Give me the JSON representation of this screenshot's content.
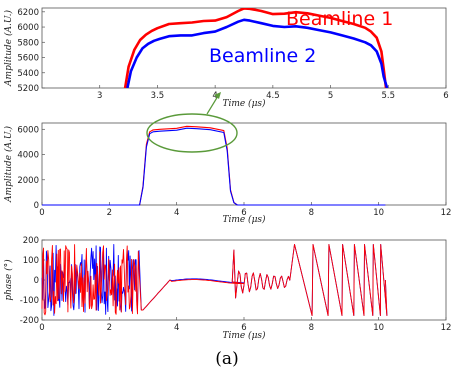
{
  "figure": {
    "caption": "(a)"
  },
  "chart_data": [
    {
      "type": "line",
      "xlabel": "Time (μs)",
      "ylabel": "Amplitude (A.U.)",
      "xlim": [
        2.5,
        6
      ],
      "ylim": [
        5200,
        6250
      ],
      "xticks": [
        "3",
        "3.5",
        "4",
        "4.5",
        "5",
        "5.5",
        "6"
      ],
      "yticks": [
        "5200",
        "5400",
        "5600",
        "5800",
        "6000",
        "6200"
      ],
      "annotations": [
        "Beamline 1",
        "Beamline 2"
      ],
      "series": [
        {
          "name": "Beamline 1",
          "color": "#ff0000",
          "x": [
            3.22,
            3.25,
            3.3,
            3.35,
            3.4,
            3.45,
            3.5,
            3.6,
            3.7,
            3.8,
            3.9,
            4.0,
            4.1,
            4.2,
            4.25,
            4.3,
            4.4,
            4.5,
            4.6,
            4.7,
            4.8,
            4.9,
            5.0,
            5.1,
            5.2,
            5.3,
            5.35,
            5.4,
            5.44,
            5.46,
            5.48
          ],
          "y": [
            5200,
            5480,
            5700,
            5830,
            5900,
            5950,
            5985,
            6040,
            6050,
            6060,
            6080,
            6085,
            6130,
            6210,
            6245,
            6240,
            6210,
            6170,
            6175,
            6195,
            6180,
            6150,
            6120,
            6080,
            6040,
            5990,
            5940,
            5860,
            5680,
            5450,
            5200
          ]
        },
        {
          "name": "Beamline 2",
          "color": "#0000ff",
          "x": [
            3.24,
            3.27,
            3.32,
            3.37,
            3.42,
            3.47,
            3.52,
            3.6,
            3.7,
            3.8,
            3.9,
            4.0,
            4.1,
            4.2,
            4.25,
            4.3,
            4.4,
            4.5,
            4.6,
            4.7,
            4.8,
            4.9,
            5.0,
            5.1,
            5.2,
            5.3,
            5.35,
            5.4,
            5.44,
            5.46,
            5.49
          ],
          "y": [
            5200,
            5420,
            5600,
            5720,
            5780,
            5820,
            5845,
            5880,
            5890,
            5890,
            5920,
            5940,
            6000,
            6070,
            6095,
            6085,
            6050,
            6015,
            6000,
            6010,
            5990,
            5960,
            5930,
            5890,
            5850,
            5800,
            5760,
            5680,
            5520,
            5350,
            5200
          ]
        }
      ]
    },
    {
      "type": "line",
      "xlabel": "Time (μs)",
      "ylabel": "Amplitude (A.U.)",
      "xlim": [
        0,
        12
      ],
      "ylim": [
        0,
        6500
      ],
      "xticks": [
        "0",
        "2",
        "4",
        "6",
        "8",
        "10",
        "12"
      ],
      "yticks": [
        "0",
        "2000",
        "4000",
        "6000"
      ],
      "series": [
        {
          "name": "Beamline 1",
          "color": "#ff0000",
          "x": [
            0,
            2.9,
            3.0,
            3.1,
            3.2,
            3.3,
            3.5,
            4.0,
            4.3,
            4.6,
            5.0,
            5.4,
            5.5,
            5.6,
            5.7,
            5.8,
            6.0,
            10.2
          ],
          "y": [
            0,
            0,
            1500,
            4800,
            5800,
            5950,
            6000,
            6080,
            6240,
            6200,
            6120,
            5900,
            4500,
            1200,
            200,
            0,
            0,
            0
          ]
        },
        {
          "name": "Beamline 2",
          "color": "#0000ff",
          "x": [
            0,
            2.9,
            3.0,
            3.1,
            3.2,
            3.3,
            3.5,
            4.0,
            4.3,
            4.6,
            5.0,
            5.4,
            5.5,
            5.6,
            5.7,
            5.8,
            6.0,
            10.2
          ],
          "y": [
            0,
            0,
            1400,
            4600,
            5650,
            5800,
            5850,
            5930,
            6090,
            6050,
            5970,
            5750,
            4300,
            1100,
            180,
            0,
            0,
            0
          ]
        }
      ]
    },
    {
      "type": "line",
      "xlabel": "Time (μs)",
      "ylabel": "phase (°)",
      "xlim": [
        0,
        12
      ],
      "ylim": [
        -200,
        200
      ],
      "xticks": [
        "0",
        "2",
        "4",
        "6",
        "8",
        "10",
        "12"
      ],
      "yticks": [
        "-200",
        "-100",
        "0",
        "100",
        "200"
      ],
      "series": [
        {
          "name": "Beamline 1",
          "color": "#ff0000"
        },
        {
          "name": "Beamline 2",
          "color": "#0000ff"
        }
      ]
    }
  ]
}
